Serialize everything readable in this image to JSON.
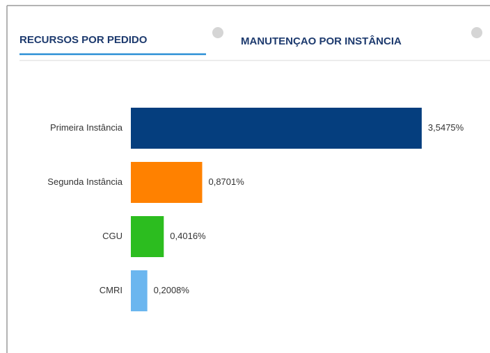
{
  "tabs": [
    "RECURSOS POR PEDIDO",
    "MANUTENÇAO POR INSTÂNCIA"
  ],
  "chart_data": {
    "type": "bar",
    "orientation": "horizontal",
    "categories": [
      "Primeira Instância",
      "Segunda Instância",
      "CGU",
      "CMRI"
    ],
    "values": [
      3.5475,
      0.8701,
      0.4016,
      0.2008
    ],
    "value_labels": [
      "3,5475%",
      "0,8701%",
      "0,4016%",
      "0,2008%"
    ],
    "colors": [
      "#053e7e",
      "#ff8100",
      "#2cbd1f",
      "#6bb6ef"
    ]
  }
}
